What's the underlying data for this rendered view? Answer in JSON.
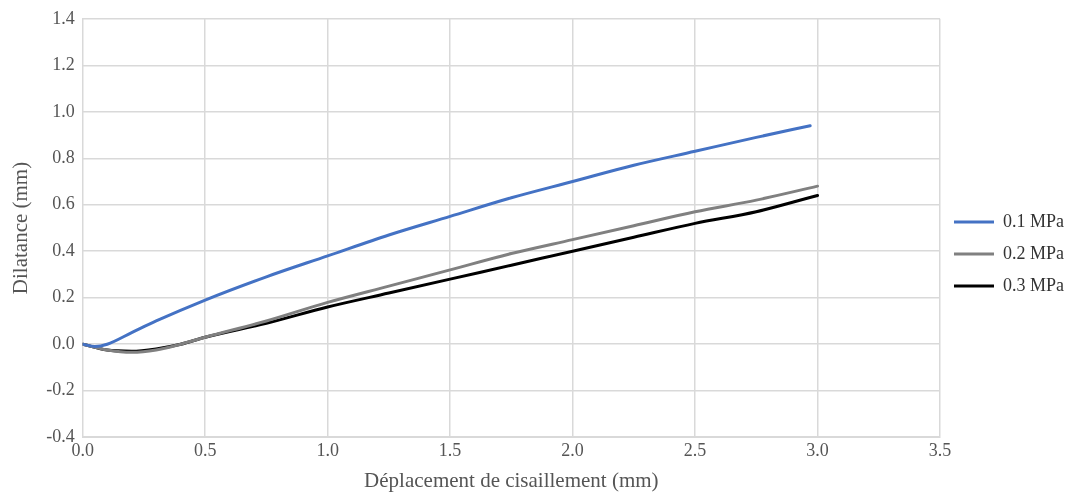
{
  "chart_data": {
    "type": "line",
    "xlabel": "Déplacement de cisaillement (mm)",
    "ylabel": "Dilatance (mm)",
    "xlim": [
      0,
      3.5
    ],
    "xticks": [
      {
        "value": 0,
        "label": "0.0"
      },
      {
        "value": 0.5,
        "label": "0.5"
      },
      {
        "value": 1,
        "label": "1.0"
      },
      {
        "value": 1.5,
        "label": "1.5"
      },
      {
        "value": 2,
        "label": "2.0"
      },
      {
        "value": 2.5,
        "label": "2.5"
      },
      {
        "value": 3,
        "label": "3.0"
      },
      {
        "value": 3.5,
        "label": "3.5"
      }
    ],
    "ylim": [
      -0.4,
      1.4
    ],
    "yticks": [
      {
        "value": -0.4,
        "label": "-0.4"
      },
      {
        "value": -0.2,
        "label": "-0.2"
      },
      {
        "value": 0,
        "label": "0.0"
      },
      {
        "value": 0.2,
        "label": "0.2"
      },
      {
        "value": 0.4,
        "label": "0.4"
      },
      {
        "value": 0.6,
        "label": "0.6"
      },
      {
        "value": 0.8,
        "label": "0.8"
      },
      {
        "value": 1,
        "label": "1.0"
      },
      {
        "value": 1.2,
        "label": "1.2"
      },
      {
        "value": 1.4,
        "label": "1.4"
      }
    ],
    "grid": true,
    "legend": "right",
    "marker": "none",
    "line_style": "solid",
    "series": [
      {
        "name": "0.1 MPa",
        "color": "#4472c4",
        "x": [
          0,
          0.05,
          0.1,
          0.2,
          0.3,
          0.5,
          0.75,
          1,
          1.25,
          1.5,
          1.75,
          2,
          2.25,
          2.5,
          2.75,
          2.97
        ],
        "values": [
          0,
          -0.01,
          0,
          0.05,
          0.1,
          0.19,
          0.29,
          0.38,
          0.47,
          0.55,
          0.63,
          0.7,
          0.77,
          0.83,
          0.89,
          0.94
        ]
      },
      {
        "name": "0.2 MPa",
        "color": "#808080",
        "x": [
          0,
          0.1,
          0.2,
          0.3,
          0.4,
          0.5,
          0.75,
          1,
          1.25,
          1.5,
          1.75,
          2,
          2.25,
          2.5,
          2.75,
          3
        ],
        "values": [
          0,
          -0.025,
          -0.035,
          -0.025,
          0,
          0.03,
          0.1,
          0.18,
          0.25,
          0.32,
          0.39,
          0.45,
          0.51,
          0.57,
          0.62,
          0.68
        ]
      },
      {
        "name": "0.3 MPa",
        "color": "#000000",
        "x": [
          0,
          0.1,
          0.2,
          0.3,
          0.4,
          0.5,
          0.75,
          1,
          1.25,
          1.5,
          1.75,
          2,
          2.25,
          2.5,
          2.75,
          3
        ],
        "values": [
          0,
          -0.025,
          -0.03,
          -0.02,
          0,
          0.03,
          0.09,
          0.16,
          0.22,
          0.28,
          0.34,
          0.4,
          0.46,
          0.52,
          0.57,
          0.64
        ]
      }
    ]
  }
}
